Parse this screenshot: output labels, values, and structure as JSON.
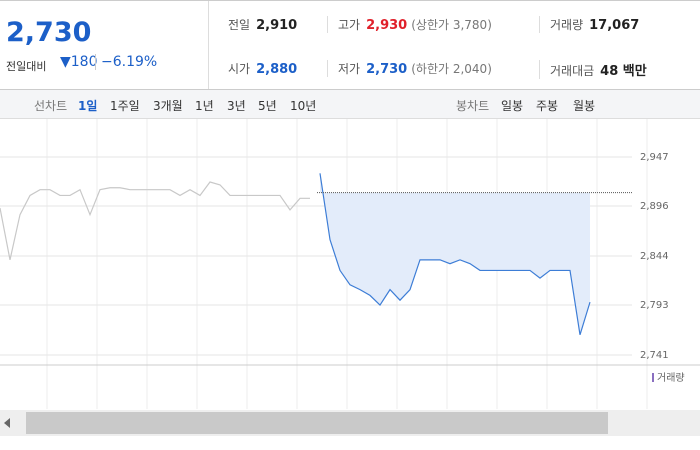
{
  "quote": {
    "price": "2,730",
    "change_label": "전일대비",
    "change": "▼180",
    "rate": "−6.19%"
  },
  "summary": [
    [
      {
        "label": "전일",
        "value": "2,910"
      },
      {
        "label": "고가",
        "value": "2,930",
        "note": "(상한가 3,780)"
      },
      {
        "label": "거래량",
        "value": "17,067"
      }
    ],
    [
      {
        "label": "시가",
        "value": "2,880"
      },
      {
        "label": "저가",
        "value": "2,730",
        "note": "(하한가 2,040)"
      },
      {
        "label": "거래대금",
        "value": "48 백만"
      }
    ]
  ],
  "tabs": {
    "line_label": "선차트",
    "line": [
      "1일",
      "1주일",
      "3개월",
      "1년",
      "3년",
      "5년",
      "10년"
    ],
    "candle_label": "봉차트",
    "candle": [
      "일봉",
      "주봉",
      "월봉"
    ]
  },
  "chart_data": {
    "type": "line",
    "reference": 2910,
    "ylim": [
      2741,
      2947
    ],
    "yticks": [
      {
        "value": 2947,
        "label": "2,947"
      },
      {
        "value": 2896,
        "label": "2,896"
      },
      {
        "value": 2844,
        "label": "2,844"
      },
      {
        "value": 2793,
        "label": "2,793"
      },
      {
        "value": 2741,
        "label": "2,741"
      }
    ],
    "grid": true,
    "volume_legend": "거래량",
    "series": [
      {
        "color": "#c8c8c8",
        "values": [
          2894,
          2840,
          2887,
          2907,
          2913,
          2913,
          2907,
          2907,
          2913,
          2887,
          2913,
          2915,
          2915,
          2913,
          2913,
          2913,
          2913,
          2913,
          2907,
          2913,
          2907,
          2921,
          2918,
          2907,
          2907,
          2907,
          2907,
          2907,
          2907,
          2892,
          2904,
          2904,
          null,
          null,
          null,
          null,
          null,
          null,
          null,
          null,
          null,
          null,
          null,
          null,
          null,
          null,
          null,
          null,
          null,
          null,
          null,
          null,
          null,
          null,
          null,
          null,
          null,
          null,
          null,
          null,
          null,
          null,
          null,
          null
        ]
      },
      {
        "color": "#3d7dd6",
        "fill": "#e3ecfa",
        "values": [
          null,
          null,
          null,
          null,
          null,
          null,
          null,
          null,
          null,
          null,
          null,
          null,
          null,
          null,
          null,
          null,
          null,
          null,
          null,
          null,
          null,
          null,
          null,
          null,
          null,
          null,
          null,
          null,
          null,
          null,
          null,
          null,
          2930,
          2861,
          2829,
          2814,
          2809,
          2803,
          2793,
          2809,
          2798,
          2809,
          2840,
          2840,
          2840,
          2836,
          2840,
          2836,
          2829,
          2829,
          2829,
          2829,
          2829,
          2829,
          2821,
          2829,
          2829,
          2829,
          2762,
          2796,
          null,
          null,
          null,
          null
        ]
      }
    ]
  }
}
